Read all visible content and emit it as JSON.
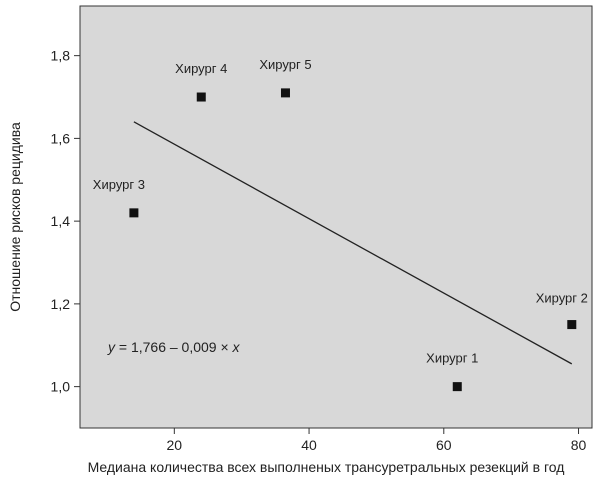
{
  "chart_data": {
    "type": "scatter",
    "title": "",
    "xlabel": "Медиана количества всех выполненых трансуретральных резекций в год",
    "ylabel": "Отношение рисков рецидива",
    "xlim": [
      6,
      82
    ],
    "ylim": [
      0.9,
      1.92
    ],
    "xticks": [
      20,
      40,
      60,
      80
    ],
    "yticks": [
      1.0,
      1.2,
      1.4,
      1.6,
      1.8
    ],
    "xtick_labels": [
      "20",
      "40",
      "60",
      "80"
    ],
    "ytick_labels": [
      "1,0",
      "1,2",
      "1,4",
      "1,6",
      "1,8"
    ],
    "points": [
      {
        "label": "Хирург 1",
        "x": 62,
        "y": 1.0
      },
      {
        "label": "Хирург 2",
        "x": 79,
        "y": 1.15
      },
      {
        "label": "Хирург 3",
        "x": 14,
        "y": 1.42
      },
      {
        "label": "Хирург 4",
        "x": 24,
        "y": 1.7
      },
      {
        "label": "Хирург 5",
        "x": 36.5,
        "y": 1.71
      }
    ],
    "fit_line": {
      "intercept": 1.766,
      "slope": -0.009,
      "x_range": [
        14,
        79
      ]
    },
    "equation": {
      "y_var": "y",
      "rhs": " = 1,766 – 0,009 × ",
      "x_var": "x"
    },
    "grid": false,
    "colors": {
      "plot_background": "#d8d8d8",
      "marker": "#111111",
      "line": "#222222"
    }
  }
}
